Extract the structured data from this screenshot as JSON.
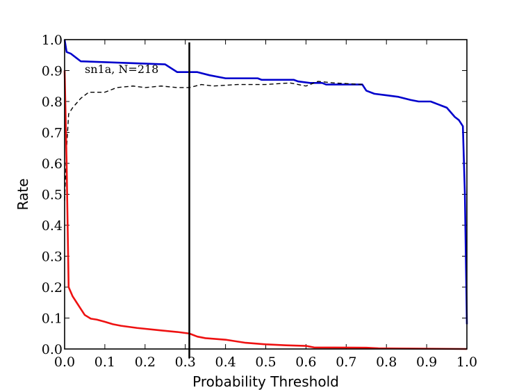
{
  "chart_data": {
    "type": "line",
    "title": "",
    "xlabel": "Probability Threshold",
    "ylabel": "Rate",
    "xlim": [
      0.0,
      1.0
    ],
    "ylim": [
      0.0,
      1.0
    ],
    "xticks": [
      "0.0",
      "0.1",
      "0.2",
      "0.3",
      "0.4",
      "0.5",
      "0.6",
      "0.7",
      "0.8",
      "0.9",
      "1.0"
    ],
    "yticks": [
      "0.0",
      "0.1",
      "0.2",
      "0.3",
      "0.4",
      "0.5",
      "0.6",
      "0.7",
      "0.8",
      "0.9",
      "1.0"
    ],
    "grid": false,
    "annotation": "sn1a, N=218",
    "threshold_line_x": 0.31,
    "series": [
      {
        "color": "#0000cc",
        "style": "solid",
        "points": [
          [
            0.0,
            1.0
          ],
          [
            0.005,
            0.96
          ],
          [
            0.015,
            0.955
          ],
          [
            0.03,
            0.94
          ],
          [
            0.04,
            0.93
          ],
          [
            0.25,
            0.92
          ],
          [
            0.28,
            0.895
          ],
          [
            0.33,
            0.895
          ],
          [
            0.36,
            0.885
          ],
          [
            0.4,
            0.875
          ],
          [
            0.48,
            0.875
          ],
          [
            0.49,
            0.87
          ],
          [
            0.57,
            0.87
          ],
          [
            0.58,
            0.865
          ],
          [
            0.61,
            0.86
          ],
          [
            0.64,
            0.86
          ],
          [
            0.65,
            0.855
          ],
          [
            0.74,
            0.855
          ],
          [
            0.75,
            0.835
          ],
          [
            0.77,
            0.825
          ],
          [
            0.8,
            0.82
          ],
          [
            0.83,
            0.815
          ],
          [
            0.86,
            0.805
          ],
          [
            0.88,
            0.8
          ],
          [
            0.91,
            0.8
          ],
          [
            0.93,
            0.79
          ],
          [
            0.95,
            0.78
          ],
          [
            0.97,
            0.75
          ],
          [
            0.98,
            0.74
          ],
          [
            0.99,
            0.72
          ],
          [
            0.995,
            0.5
          ],
          [
            1.0,
            0.08
          ]
        ]
      },
      {
        "color": "#000000",
        "style": "dashed",
        "points": [
          [
            0.0,
            0.48
          ],
          [
            0.005,
            0.65
          ],
          [
            0.01,
            0.76
          ],
          [
            0.02,
            0.78
          ],
          [
            0.04,
            0.81
          ],
          [
            0.06,
            0.83
          ],
          [
            0.1,
            0.83
          ],
          [
            0.13,
            0.845
          ],
          [
            0.17,
            0.85
          ],
          [
            0.2,
            0.845
          ],
          [
            0.24,
            0.85
          ],
          [
            0.28,
            0.845
          ],
          [
            0.31,
            0.845
          ],
          [
            0.34,
            0.855
          ],
          [
            0.37,
            0.85
          ],
          [
            0.43,
            0.855
          ],
          [
            0.5,
            0.855
          ],
          [
            0.56,
            0.86
          ],
          [
            0.6,
            0.85
          ],
          [
            0.63,
            0.865
          ],
          [
            0.67,
            0.86
          ],
          [
            0.74,
            0.855
          ]
        ]
      },
      {
        "color": "#ee1111",
        "style": "solid",
        "points": [
          [
            0.0,
            0.9
          ],
          [
            0.005,
            0.6
          ],
          [
            0.01,
            0.2
          ],
          [
            0.02,
            0.17
          ],
          [
            0.03,
            0.15
          ],
          [
            0.04,
            0.13
          ],
          [
            0.05,
            0.11
          ],
          [
            0.065,
            0.098
          ],
          [
            0.08,
            0.095
          ],
          [
            0.1,
            0.088
          ],
          [
            0.12,
            0.08
          ],
          [
            0.14,
            0.075
          ],
          [
            0.18,
            0.068
          ],
          [
            0.24,
            0.06
          ],
          [
            0.28,
            0.055
          ],
          [
            0.31,
            0.05
          ],
          [
            0.33,
            0.04
          ],
          [
            0.35,
            0.035
          ],
          [
            0.4,
            0.03
          ],
          [
            0.45,
            0.02
          ],
          [
            0.5,
            0.015
          ],
          [
            0.55,
            0.012
          ],
          [
            0.6,
            0.01
          ],
          [
            0.62,
            0.005
          ],
          [
            0.75,
            0.004
          ],
          [
            0.78,
            0.002
          ],
          [
            1.0,
            0.0
          ]
        ]
      }
    ]
  }
}
